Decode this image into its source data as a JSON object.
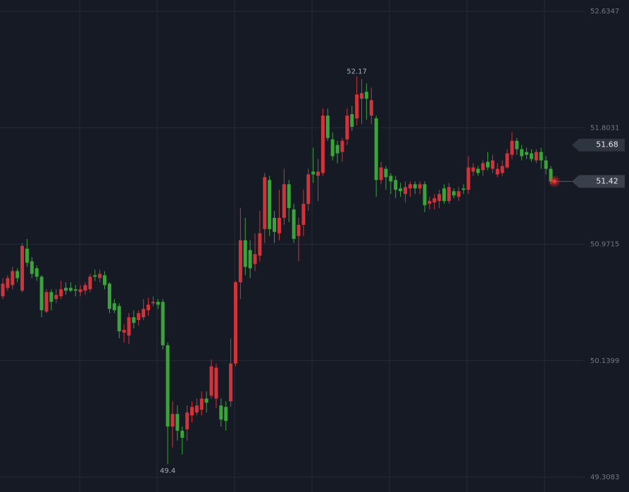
{
  "chart_data": {
    "type": "candlestick",
    "colors": {
      "up": "#d0343a",
      "down": "#3aa43a",
      "background": "#161a25",
      "grid": "#242936"
    },
    "ylim": [
      49.3083,
      52.6347
    ],
    "yticks": [
      52.6347,
      51.8031,
      50.9715,
      50.1399,
      49.3083
    ],
    "grid": true,
    "reference_price": 51.68,
    "open": [
      50.6,
      50.66,
      50.68,
      50.78,
      50.64,
      50.94,
      50.85,
      50.8,
      50.74,
      50.49,
      50.63,
      50.58,
      50.6,
      50.66,
      50.66,
      50.65,
      50.63,
      50.64,
      50.65,
      50.75,
      50.73,
      50.75,
      50.69,
      50.55,
      50.53,
      50.34,
      50.32,
      50.45,
      50.43,
      50.45,
      50.5,
      50.55,
      50.56,
      50.56,
      50.25,
      49.67,
      49.76,
      49.64,
      49.65,
      49.75,
      49.77,
      49.79,
      49.87,
      49.89,
      49.87,
      49.82,
      49.81,
      49.85,
      50.12,
      50.7,
      51.0,
      50.93,
      50.83,
      50.89,
      51.08,
      51.43,
      51.16,
      51.05,
      51.16,
      51.4,
      51.22,
      51.03,
      51.11,
      51.26,
      51.49,
      51.46,
      51.48,
      51.89,
      51.72,
      51.68,
      51.63,
      51.72,
      51.9,
      51.87,
      52.01,
      52.06,
      51.89,
      51.87,
      51.43,
      51.51,
      51.46,
      51.43,
      51.37,
      51.33,
      51.37,
      51.4,
      51.37,
      51.4,
      51.26,
      51.27,
      51.28,
      51.37,
      51.28,
      51.35,
      51.31,
      51.37,
      51.36,
      51.49,
      51.51,
      51.5,
      51.56,
      51.51,
      51.47,
      51.48,
      51.52,
      51.61,
      51.71,
      51.65,
      51.63,
      51.62,
      51.57,
      51.63,
      51.57,
      51.51
    ],
    "high": [
      50.73,
      50.75,
      50.81,
      50.8,
      50.98,
      51.01,
      50.88,
      50.82,
      50.75,
      50.65,
      50.65,
      50.65,
      50.71,
      50.7,
      50.7,
      50.68,
      50.68,
      50.7,
      50.76,
      50.79,
      50.79,
      50.78,
      50.7,
      50.58,
      50.55,
      50.4,
      50.48,
      50.5,
      50.5,
      50.58,
      50.59,
      50.6,
      50.58,
      50.58,
      50.27,
      49.85,
      49.82,
      49.67,
      49.82,
      49.85,
      49.87,
      49.92,
      49.92,
      50.15,
      50.12,
      49.87,
      49.85,
      50.3,
      50.71,
      51.23,
      51.16,
      51.0,
      51.05,
      51.21,
      51.48,
      51.46,
      51.21,
      51.36,
      51.51,
      51.43,
      51.26,
      51.16,
      51.36,
      51.51,
      51.66,
      51.58,
      51.94,
      51.94,
      51.77,
      51.71,
      51.73,
      51.94,
      51.96,
      52.17,
      52.15,
      52.12,
      52.09,
      51.89,
      51.56,
      51.53,
      51.48,
      51.46,
      51.41,
      51.42,
      51.42,
      51.42,
      51.42,
      51.42,
      51.31,
      51.33,
      51.36,
      51.4,
      51.41,
      51.37,
      51.38,
      51.4,
      51.6,
      51.55,
      51.53,
      51.57,
      51.63,
      51.61,
      51.55,
      51.57,
      51.65,
      51.77,
      51.73,
      51.68,
      51.66,
      51.65,
      51.65,
      51.66,
      51.6,
      51.53
    ],
    "low": [
      50.58,
      50.64,
      50.65,
      50.7,
      50.63,
      50.81,
      50.73,
      50.71,
      50.45,
      50.48,
      50.5,
      50.55,
      50.58,
      50.61,
      50.63,
      50.6,
      50.6,
      50.61,
      50.63,
      50.71,
      50.7,
      50.65,
      50.48,
      50.48,
      50.3,
      50.27,
      50.26,
      50.37,
      50.39,
      50.43,
      50.46,
      50.53,
      50.51,
      50.22,
      49.4,
      49.52,
      49.57,
      49.47,
      49.57,
      49.7,
      49.75,
      49.75,
      49.77,
      49.87,
      49.8,
      49.67,
      49.64,
      49.81,
      50.1,
      50.58,
      50.75,
      50.73,
      50.78,
      50.85,
      50.98,
      51.03,
      50.98,
      51.0,
      51.11,
      51.13,
      50.98,
      50.85,
      51.03,
      51.21,
      51.41,
      51.28,
      51.46,
      51.71,
      51.57,
      51.55,
      51.56,
      51.68,
      51.78,
      51.82,
      51.83,
      51.86,
      51.83,
      51.31,
      51.4,
      51.36,
      51.33,
      51.3,
      51.31,
      51.27,
      51.31,
      51.33,
      51.33,
      51.2,
      51.22,
      51.22,
      51.23,
      51.26,
      51.26,
      51.3,
      51.28,
      51.33,
      51.33,
      51.46,
      51.46,
      51.46,
      51.5,
      51.48,
      51.45,
      51.46,
      51.51,
      51.58,
      51.61,
      51.57,
      51.58,
      51.56,
      51.55,
      51.51,
      51.47,
      51.4
    ],
    "close": [
      50.69,
      50.73,
      50.78,
      50.73,
      50.96,
      50.84,
      50.76,
      50.74,
      50.5,
      50.63,
      50.56,
      50.61,
      50.65,
      50.64,
      50.64,
      50.64,
      50.65,
      50.68,
      50.74,
      50.74,
      50.76,
      50.68,
      50.51,
      50.5,
      50.35,
      50.36,
      50.45,
      50.41,
      50.48,
      50.51,
      50.54,
      50.56,
      50.54,
      50.25,
      49.67,
      49.76,
      49.64,
      49.59,
      49.77,
      49.81,
      49.82,
      49.87,
      49.84,
      50.1,
      50.09,
      49.72,
      49.71,
      50.12,
      50.7,
      51.0,
      50.81,
      50.8,
      50.9,
      51.05,
      51.45,
      51.08,
      51.06,
      51.16,
      51.4,
      51.23,
      51.01,
      51.11,
      51.26,
      51.47,
      51.47,
      51.49,
      51.89,
      51.73,
      51.6,
      51.62,
      51.71,
      51.89,
      51.81,
      52.04,
      52.05,
      52.01,
      52.0,
      51.43,
      51.52,
      51.45,
      51.42,
      51.36,
      51.35,
      51.38,
      51.4,
      51.37,
      51.4,
      51.25,
      51.28,
      51.3,
      51.33,
      51.28,
      51.38,
      51.32,
      51.35,
      51.36,
      51.52,
      51.52,
      51.48,
      51.55,
      51.52,
      51.57,
      51.51,
      51.53,
      51.62,
      51.71,
      51.65,
      51.6,
      51.61,
      51.58,
      51.63,
      51.57,
      51.51,
      51.42
    ]
  }
}
